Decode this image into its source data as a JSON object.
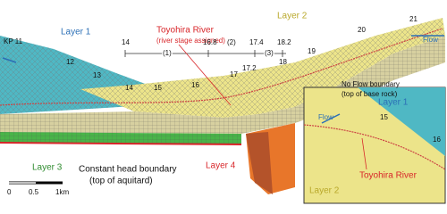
{
  "main": {
    "kp_start": "KP 11",
    "layer1": "Layer 1",
    "river_title": "Toyohira River",
    "river_subtitle": "(river stage assigned)",
    "layer2": "Layer 2",
    "flow": "Flow",
    "reaches": {
      "labels": [
        "14",
        "16.8",
        "17.4",
        "18.2"
      ],
      "sections": [
        "(1)",
        "(2)",
        "(3)"
      ]
    },
    "kp_points": [
      "12",
      "13",
      "14",
      "15",
      "16",
      "17",
      "17.2",
      "18",
      "19",
      "20",
      "21"
    ],
    "no_flow": "No Flow boundary",
    "no_flow_sub": "(top of base rock)",
    "layer3": "Layer 3",
    "const_head": "Constant head boundary",
    "const_head_sub": "(top of aquitard)",
    "layer4": "Layer 4",
    "scale": [
      "0",
      "0.5",
      "1km"
    ]
  },
  "inset": {
    "layer1": "Layer 1",
    "flow": "Flow",
    "kp_a": "15",
    "kp_b": "16",
    "layer2": "Layer 2",
    "river": "Toyohira River"
  }
}
